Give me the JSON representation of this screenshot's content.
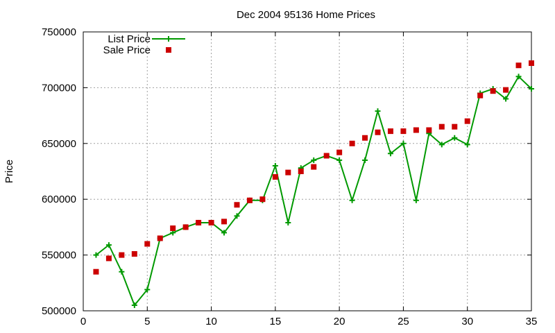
{
  "chart_data": {
    "type": "line",
    "title": "Dec 2004 95136 Home Prices",
    "xlabel": "",
    "ylabel": "Price",
    "xlim": [
      0,
      35
    ],
    "ylim": [
      500000,
      750000
    ],
    "x_ticks": [
      0,
      5,
      10,
      15,
      20,
      25,
      30,
      35
    ],
    "y_ticks": [
      500000,
      550000,
      600000,
      650000,
      700000,
      750000
    ],
    "x_tick_labels": [
      "0",
      "5",
      "10",
      "15",
      "20",
      "25",
      "30",
      "35"
    ],
    "y_tick_labels": [
      "500000",
      "550000",
      "600000",
      "650000",
      "700000",
      "750000"
    ],
    "grid": true,
    "legend_position": "top-left",
    "series": [
      {
        "name": "List Price",
        "style": "linespoints",
        "marker": "plus",
        "color": "#009900",
        "x": [
          1,
          2,
          3,
          4,
          5,
          6,
          7,
          8,
          9,
          10,
          11,
          12,
          13,
          14,
          15,
          16,
          17,
          18,
          19,
          20,
          21,
          22,
          23,
          24,
          25,
          26,
          27,
          28,
          29,
          30,
          31,
          32,
          33,
          34,
          35
        ],
        "y": [
          550000,
          559000,
          535000,
          505000,
          519000,
          565000,
          570000,
          575000,
          579000,
          579000,
          570000,
          585000,
          599000,
          599000,
          630000,
          579000,
          628000,
          635000,
          639000,
          635000,
          599000,
          635000,
          679000,
          641000,
          650000,
          599000,
          659000,
          649000,
          655000,
          649000,
          695000,
          699000,
          690000,
          710000,
          699000
        ]
      },
      {
        "name": "Sale Price",
        "style": "points",
        "marker": "square",
        "color": "#cc0000",
        "x": [
          1,
          2,
          3,
          4,
          5,
          6,
          7,
          8,
          9,
          10,
          11,
          12,
          13,
          14,
          15,
          16,
          17,
          18,
          19,
          20,
          21,
          22,
          23,
          24,
          25,
          26,
          27,
          28,
          29,
          30,
          31,
          32,
          33,
          34,
          35
        ],
        "y": [
          535000,
          547000,
          550000,
          551000,
          560000,
          565000,
          574000,
          575000,
          579000,
          579000,
          580000,
          595000,
          599000,
          600000,
          620000,
          624000,
          625000,
          629000,
          639000,
          642000,
          650000,
          655000,
          660000,
          661000,
          661000,
          662000,
          662000,
          665000,
          665000,
          670000,
          693000,
          697000,
          698000,
          720000,
          722000
        ]
      }
    ]
  }
}
